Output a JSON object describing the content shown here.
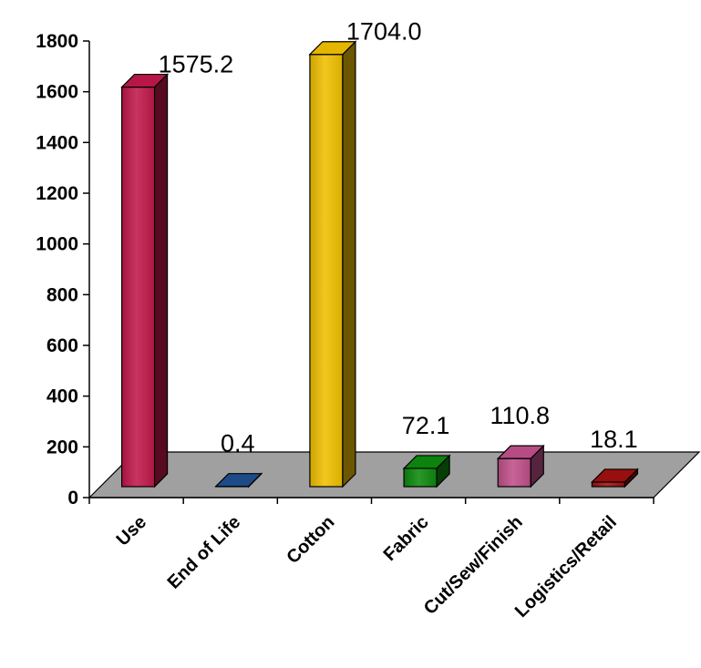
{
  "chart_data": {
    "type": "bar",
    "title": "",
    "xlabel": "",
    "ylabel": "",
    "categories": [
      "Use",
      "End of Life",
      "Cotton",
      "Fabric",
      "Cut/Sew/Finish",
      "Logistics/Retail"
    ],
    "values": [
      1575.2,
      0.4,
      1704.0,
      72.1,
      110.8,
      18.1
    ],
    "data_labels": [
      "1575.2",
      "0.4",
      "1704.0",
      "72.1",
      "110.8",
      "18.1"
    ],
    "colors": [
      "#c0184a",
      "#1f4f8f",
      "#f0c000",
      "#0d8a0d",
      "#c0508a",
      "#a01010"
    ],
    "ylim": [
      0,
      1800
    ],
    "yticks": [
      0,
      200,
      400,
      600,
      800,
      1000,
      1200,
      1400,
      1600,
      1800
    ],
    "floor_color": "#a0a0a0",
    "legend": "none",
    "grid": false,
    "style": "3d"
  }
}
